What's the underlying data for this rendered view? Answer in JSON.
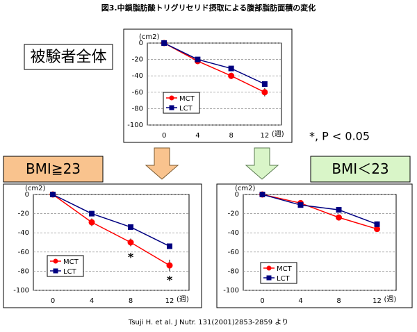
{
  "figure_title": "図3.中鎖脂肪酸トリグリセリド摂取による腹部脂肪面積の変化",
  "note": "*, P < 0.05",
  "source": "Tsuji H. et al. J Nutr. 131(2001)2853-2859 より",
  "chart_data": [
    {
      "type": "line",
      "title": "被験者全体",
      "y_label": "(cm2)",
      "x_label": "(週)",
      "categories": [
        "0",
        "4",
        "8",
        "12"
      ],
      "series": [
        {
          "name": "MCT",
          "color": "#ff0000",
          "marker": "circle",
          "values": [
            0,
            -22,
            -40,
            -60
          ],
          "errors": [
            0,
            2,
            4,
            5
          ]
        },
        {
          "name": "LCT",
          "color": "#000080",
          "marker": "square",
          "values": [
            0,
            -20,
            -31,
            -50
          ],
          "errors": [
            0,
            2,
            2,
            2
          ]
        }
      ],
      "ylim": [
        -100,
        0
      ],
      "yticks": [
        0,
        -20,
        -40,
        -60,
        -80,
        -100
      ],
      "grid": true
    },
    {
      "type": "line",
      "title": "BMI≧23",
      "y_label": "(cm2)",
      "x_label": "(週)",
      "categories": [
        "0",
        "4",
        "8",
        "12"
      ],
      "series": [
        {
          "name": "MCT",
          "color": "#ff0000",
          "marker": "circle",
          "values": [
            0,
            -29,
            -50,
            -74
          ],
          "errors": [
            0,
            4,
            4,
            6
          ]
        },
        {
          "name": "LCT",
          "color": "#000080",
          "marker": "square",
          "values": [
            0,
            -20,
            -34,
            -54
          ],
          "errors": [
            0,
            2,
            2,
            2
          ]
        }
      ],
      "annotations": [
        {
          "text": "*",
          "category": "8"
        },
        {
          "text": "*",
          "category": "12"
        }
      ],
      "ylim": [
        -100,
        0
      ],
      "yticks": [
        0,
        -20,
        -40,
        -60,
        -80,
        -100
      ],
      "grid": true
    },
    {
      "type": "line",
      "title": "BMI＜23",
      "y_label": "(cm2)",
      "x_label": "(週)",
      "categories": [
        "0",
        "4",
        "8",
        "12"
      ],
      "series": [
        {
          "name": "MCT",
          "color": "#ff0000",
          "marker": "circle",
          "values": [
            0,
            -9,
            -24,
            -36
          ],
          "errors": [
            0,
            2,
            3,
            3
          ]
        },
        {
          "name": "LCT",
          "color": "#000080",
          "marker": "square",
          "values": [
            0,
            -11,
            -16,
            -31
          ],
          "errors": [
            0,
            2,
            2,
            3
          ]
        }
      ],
      "ylim": [
        -100,
        0
      ],
      "yticks": [
        0,
        -20,
        -40,
        -60,
        -80,
        -100
      ],
      "grid": true
    }
  ]
}
